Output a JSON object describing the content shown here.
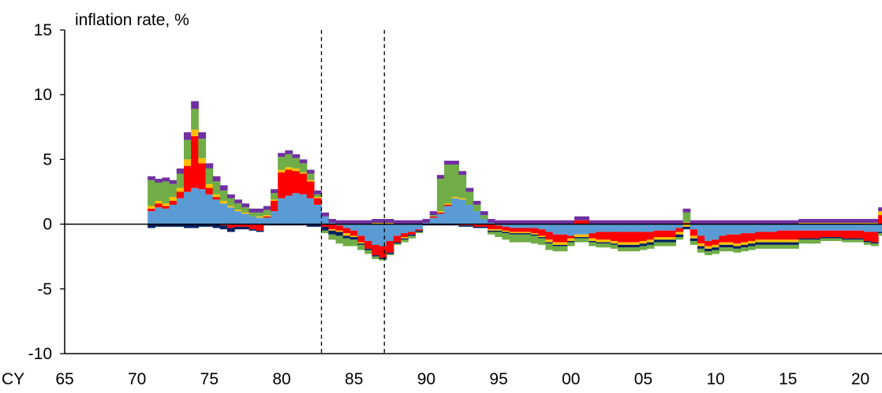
{
  "chart_data": {
    "type": "area",
    "ylabel": "inflation rate, %",
    "x_prefix": "CY",
    "xlim": [
      1965,
      2021.5
    ],
    "ylim": [
      -10,
      15
    ],
    "y_ticks": [
      15,
      10,
      5,
      0,
      -5,
      -10
    ],
    "x_ticks": [
      {
        "value": 1965,
        "label": "65"
      },
      {
        "value": 1970,
        "label": "70"
      },
      {
        "value": 1975,
        "label": "75"
      },
      {
        "value": 1980,
        "label": "80"
      },
      {
        "value": 1985,
        "label": "85"
      },
      {
        "value": 1990,
        "label": "90"
      },
      {
        "value": 1995,
        "label": "95"
      },
      {
        "value": 2000,
        "label": "00"
      },
      {
        "value": 2005,
        "label": "05"
      },
      {
        "value": 2010,
        "label": "10"
      },
      {
        "value": 2015,
        "label": "15"
      },
      {
        "value": 2020,
        "label": "20"
      }
    ],
    "reference_lines": [
      1982.75,
      1987.1
    ],
    "grid": false,
    "legend": "none",
    "colors": {
      "blue": "#5b9bd5",
      "red": "#ff0000",
      "yellow": "#ffc000",
      "navy": "#002060",
      "green": "#70ad47",
      "purple": "#7030a0"
    },
    "x": [
      1971.0,
      1971.5,
      1972.0,
      1972.5,
      1973.0,
      1973.5,
      1974.0,
      1974.5,
      1975.0,
      1975.5,
      1976.0,
      1976.5,
      1977.0,
      1977.5,
      1978.0,
      1978.5,
      1979.0,
      1979.5,
      1980.0,
      1980.5,
      1981.0,
      1981.5,
      1982.0,
      1982.5,
      1983.0,
      1983.5,
      1984.0,
      1984.5,
      1985.0,
      1985.5,
      1986.0,
      1986.5,
      1987.0,
      1987.5,
      1988.0,
      1988.5,
      1989.0,
      1989.5,
      1990.0,
      1990.5,
      1991.0,
      1991.5,
      1992.0,
      1992.5,
      1993.0,
      1993.5,
      1994.0,
      1994.5,
      1995.0,
      1995.5,
      1996.0,
      1996.5,
      1997.0,
      1997.5,
      1998.0,
      1998.5,
      1999.0,
      1999.5,
      2000.0,
      2000.5,
      2001.0,
      2001.5,
      2002.0,
      2002.5,
      2003.0,
      2003.5,
      2004.0,
      2004.5,
      2005.0,
      2005.5,
      2006.0,
      2006.5,
      2007.0,
      2007.5,
      2008.0,
      2008.5,
      2009.0,
      2009.5,
      2010.0,
      2010.5,
      2011.0,
      2011.5,
      2012.0,
      2012.5,
      2013.0,
      2013.5,
      2014.0,
      2014.5,
      2015.0,
      2015.5,
      2016.0,
      2016.5,
      2017.0,
      2017.5,
      2018.0,
      2018.5,
      2019.0,
      2019.5,
      2020.0,
      2020.5,
      2021.0,
      2021.5
    ],
    "series": [
      {
        "color": "blue",
        "values": [
          1.0,
          1.3,
          1.2,
          1.5,
          2.0,
          2.5,
          2.8,
          2.7,
          2.3,
          1.9,
          1.6,
          1.3,
          1.0,
          0.8,
          0.6,
          0.5,
          0.5,
          1.0,
          2.0,
          2.2,
          2.4,
          2.3,
          2.0,
          1.5,
          0.6,
          0.1,
          -0.1,
          -0.3,
          -0.5,
          -0.9,
          -1.3,
          -1.6,
          -1.7,
          -1.3,
          -0.9,
          -0.7,
          -0.6,
          -0.4,
          0.1,
          0.5,
          0.8,
          1.4,
          2.0,
          1.9,
          1.5,
          1.0,
          0.4,
          0.1,
          -0.1,
          -0.2,
          -0.3,
          -0.3,
          -0.3,
          -0.3,
          -0.4,
          -0.6,
          -0.8,
          -0.8,
          -0.9,
          -0.8,
          -0.8,
          -0.7,
          -0.6,
          -0.6,
          -0.6,
          -0.6,
          -0.6,
          -0.6,
          -0.6,
          -0.6,
          -0.5,
          -0.5,
          -0.5,
          -0.3,
          0.0,
          -0.4,
          -0.9,
          -1.3,
          -1.2,
          -0.9,
          -0.8,
          -0.8,
          -0.7,
          -0.7,
          -0.6,
          -0.6,
          -0.6,
          -0.5,
          -0.5,
          -0.5,
          -0.5,
          -0.5,
          -0.5,
          -0.5,
          -0.5,
          -0.5,
          -0.5,
          -0.5,
          -0.5,
          -0.6,
          -0.6,
          -0.6
        ]
      },
      {
        "color": "red",
        "values": [
          0.2,
          0.3,
          0.2,
          0.3,
          0.5,
          2.0,
          4.0,
          2.0,
          0.5,
          0.2,
          -0.1,
          -0.3,
          -0.2,
          -0.2,
          -0.4,
          -0.5,
          0.1,
          0.8,
          2.0,
          2.0,
          1.7,
          1.6,
          1.3,
          0.5,
          -0.2,
          -0.4,
          -0.4,
          -0.4,
          -0.4,
          -0.5,
          -0.6,
          -0.8,
          -0.9,
          -0.9,
          -0.5,
          -0.3,
          -0.2,
          -0.1,
          0.0,
          0.1,
          0.1,
          0.1,
          0.0,
          -0.1,
          -0.1,
          -0.2,
          -0.2,
          -0.4,
          -0.3,
          -0.3,
          -0.3,
          -0.3,
          -0.3,
          -0.4,
          -0.5,
          -0.6,
          -0.6,
          -0.6,
          -0.2,
          0.3,
          0.3,
          -0.4,
          -0.6,
          -0.6,
          -0.7,
          -0.8,
          -0.8,
          -0.8,
          -0.7,
          -0.6,
          -0.5,
          -0.5,
          -0.5,
          -0.3,
          0.1,
          -0.5,
          -0.6,
          -0.4,
          -0.4,
          -0.5,
          -0.6,
          -0.7,
          -0.7,
          -0.6,
          -0.6,
          -0.6,
          -0.6,
          -0.7,
          -0.7,
          -0.7,
          -0.6,
          -0.6,
          -0.6,
          -0.5,
          -0.5,
          -0.5,
          -0.6,
          -0.6,
          -0.6,
          -0.7,
          -0.8,
          0.7
        ]
      },
      {
        "color": "yellow",
        "values": [
          0.2,
          0.2,
          0.2,
          0.3,
          0.3,
          0.5,
          0.5,
          0.4,
          0.3,
          0.2,
          0.2,
          0.1,
          0.1,
          0.1,
          0.0,
          0.1,
          0.1,
          0.1,
          0.2,
          0.2,
          0.2,
          0.1,
          0.1,
          0.1,
          0.0,
          -0.1,
          -0.1,
          -0.2,
          -0.1,
          -0.1,
          0.0,
          0.1,
          0.1,
          0.1,
          0.0,
          -0.1,
          0.0,
          0.0,
          0.0,
          0.0,
          0.1,
          0.1,
          0.1,
          0.1,
          0.0,
          0.0,
          0.0,
          -0.1,
          -0.1,
          -0.1,
          -0.1,
          -0.1,
          -0.1,
          -0.1,
          -0.1,
          -0.2,
          -0.2,
          -0.2,
          -0.2,
          -0.2,
          -0.2,
          -0.2,
          -0.2,
          -0.2,
          -0.2,
          -0.2,
          -0.2,
          -0.2,
          -0.2,
          -0.2,
          -0.2,
          -0.2,
          -0.2,
          -0.2,
          -0.2,
          -0.2,
          -0.2,
          -0.2,
          -0.2,
          -0.2,
          -0.2,
          -0.2,
          -0.2,
          -0.2,
          -0.2,
          -0.2,
          -0.2,
          -0.2,
          -0.2,
          -0.2,
          0.1,
          0.1,
          0.1,
          0.1,
          0.1,
          0.1,
          0.1,
          0.1,
          0.1,
          0.1,
          0.1,
          0.3
        ]
      },
      {
        "color": "navy",
        "values": [
          -0.3,
          -0.2,
          -0.2,
          -0.2,
          -0.2,
          -0.3,
          -0.3,
          -0.2,
          -0.2,
          -0.3,
          -0.3,
          -0.3,
          -0.2,
          -0.2,
          -0.1,
          -0.1,
          -0.1,
          -0.1,
          -0.1,
          -0.1,
          -0.1,
          -0.1,
          -0.2,
          -0.2,
          -0.3,
          -0.3,
          -0.3,
          -0.2,
          -0.2,
          -0.1,
          -0.1,
          -0.1,
          -0.1,
          -0.1,
          -0.1,
          -0.1,
          -0.1,
          -0.1,
          -0.1,
          -0.1,
          -0.1,
          -0.1,
          -0.1,
          -0.1,
          -0.1,
          -0.1,
          -0.1,
          -0.1,
          -0.1,
          -0.1,
          -0.1,
          -0.1,
          -0.1,
          -0.1,
          -0.1,
          -0.1,
          -0.1,
          -0.1,
          -0.1,
          -0.1,
          -0.1,
          -0.1,
          -0.1,
          -0.1,
          -0.1,
          -0.2,
          -0.2,
          -0.2,
          -0.2,
          -0.2,
          -0.2,
          -0.2,
          -0.2,
          -0.2,
          -0.2,
          -0.2,
          -0.2,
          -0.2,
          -0.2,
          -0.2,
          -0.2,
          -0.2,
          -0.2,
          -0.2,
          -0.2,
          -0.2,
          -0.2,
          -0.2,
          -0.2,
          -0.2,
          -0.1,
          -0.1,
          -0.1,
          -0.1,
          -0.1,
          -0.1,
          -0.1,
          -0.1,
          -0.1,
          -0.1,
          -0.1,
          -0.1
        ]
      },
      {
        "color": "green",
        "values": [
          2.0,
          1.4,
          1.7,
          1.0,
          1.1,
          1.5,
          1.6,
          1.5,
          1.2,
          1.0,
          0.8,
          0.6,
          0.5,
          0.4,
          0.3,
          0.3,
          0.4,
          0.5,
          1.0,
          1.0,
          0.8,
          0.7,
          0.5,
          0.2,
          -0.2,
          -0.4,
          -0.6,
          -0.6,
          -0.5,
          -0.4,
          -0.3,
          -0.2,
          -0.1,
          -0.1,
          -0.1,
          -0.2,
          -0.2,
          -0.1,
          0.0,
          0.1,
          2.5,
          3.0,
          2.5,
          1.8,
          1.0,
          0.5,
          0.3,
          -0.2,
          -0.4,
          -0.5,
          -0.6,
          -0.6,
          -0.6,
          -0.6,
          -0.5,
          -0.5,
          -0.4,
          -0.4,
          -0.3,
          -0.3,
          -0.3,
          -0.3,
          -0.3,
          -0.3,
          -0.3,
          -0.3,
          -0.3,
          -0.3,
          -0.3,
          -0.3,
          -0.3,
          -0.3,
          -0.3,
          -0.2,
          0.8,
          -0.3,
          -0.3,
          -0.3,
          -0.3,
          -0.3,
          -0.3,
          -0.3,
          -0.3,
          -0.3,
          -0.3,
          -0.3,
          -0.3,
          -0.3,
          -0.3,
          -0.3,
          -0.3,
          -0.3,
          -0.3,
          -0.2,
          -0.2,
          -0.2,
          -0.2,
          -0.2,
          -0.2,
          -0.2,
          -0.2,
          -0.2
        ]
      },
      {
        "color": "purple",
        "values": [
          0.3,
          0.3,
          0.3,
          0.3,
          0.4,
          0.6,
          0.6,
          0.5,
          0.4,
          0.4,
          0.4,
          0.3,
          0.3,
          0.3,
          0.3,
          0.3,
          0.3,
          0.3,
          0.3,
          0.3,
          0.3,
          0.3,
          0.3,
          0.3,
          0.3,
          0.3,
          0.3,
          0.3,
          0.3,
          0.3,
          0.3,
          0.3,
          0.3,
          0.3,
          0.3,
          0.3,
          0.3,
          0.3,
          0.3,
          0.3,
          0.3,
          0.3,
          0.3,
          0.3,
          0.3,
          0.3,
          0.3,
          0.3,
          0.3,
          0.3,
          0.3,
          0.3,
          0.3,
          0.3,
          0.3,
          0.3,
          0.3,
          0.3,
          0.3,
          0.3,
          0.3,
          0.3,
          0.3,
          0.3,
          0.3,
          0.3,
          0.3,
          0.3,
          0.3,
          0.3,
          0.3,
          0.3,
          0.3,
          0.3,
          0.3,
          0.3,
          0.3,
          0.3,
          0.3,
          0.3,
          0.3,
          0.3,
          0.3,
          0.3,
          0.3,
          0.3,
          0.3,
          0.3,
          0.3,
          0.3,
          0.3,
          0.3,
          0.3,
          0.3,
          0.3,
          0.3,
          0.3,
          0.3,
          0.3,
          0.3,
          0.3,
          0.3
        ]
      }
    ]
  }
}
